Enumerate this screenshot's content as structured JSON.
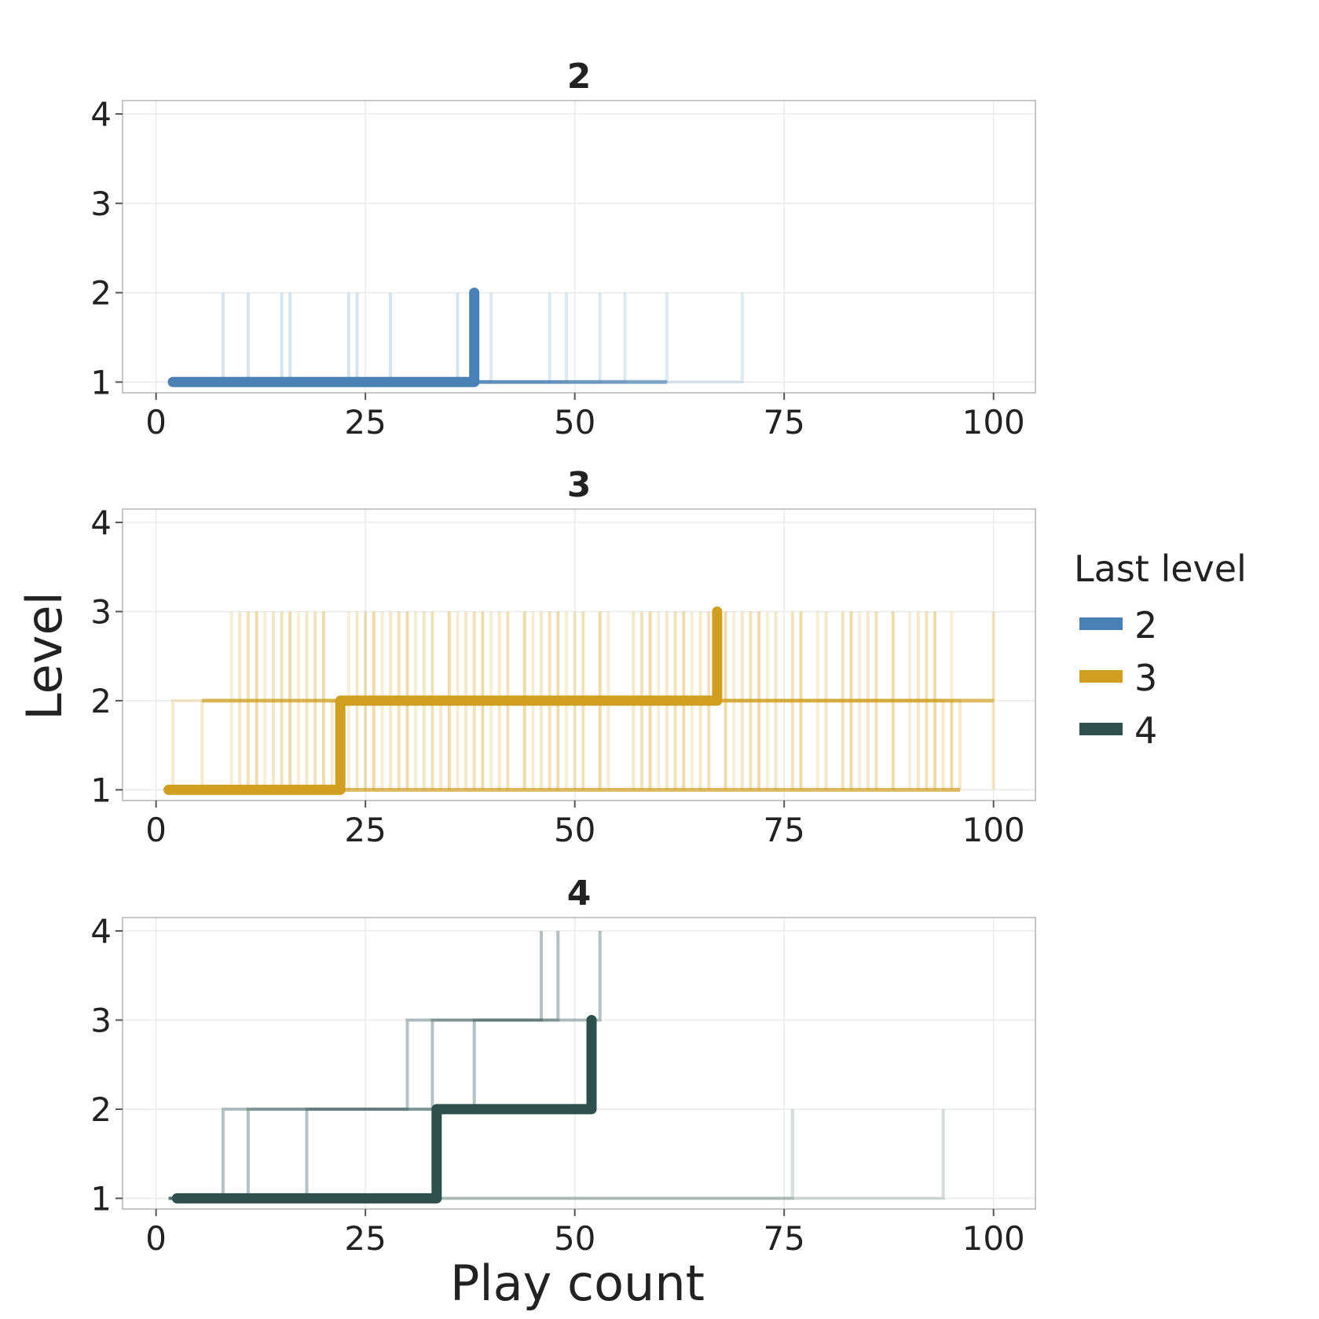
{
  "colors": {
    "2": "#4a80b3",
    "3": "#d09e20",
    "4": "#2f4f4d",
    "grid": "#ebebeb",
    "border": "#b3b3b3",
    "text": "#222222"
  },
  "chart_data": {
    "type": "line",
    "step": true,
    "xlabel": "Play count",
    "ylabel": "Level",
    "xlim": [
      -4,
      105
    ],
    "xticks": [
      0,
      25,
      50,
      75,
      100
    ],
    "legend": {
      "title": "Last level",
      "placement": "right",
      "entries": [
        "2",
        "3",
        "4"
      ]
    },
    "grid": true,
    "panels": [
      {
        "title": "2",
        "key": "2",
        "ylim": [
          0.88,
          4.15
        ],
        "yticks": [
          1,
          2,
          3,
          4
        ],
        "highlight": [
          [
            2,
            1
          ],
          [
            38,
            1
          ],
          [
            38,
            2
          ]
        ],
        "faint_steps": [
          {
            "up": 8,
            "end": 70,
            "top": 2
          },
          {
            "up": 11,
            "end": 61,
            "top": 2
          },
          {
            "up": 15,
            "end": 56,
            "top": 2
          },
          {
            "up": 16,
            "end": 53,
            "top": 2
          },
          {
            "up": 23,
            "end": 49,
            "top": 2
          },
          {
            "up": 24,
            "end": 47,
            "top": 2
          },
          {
            "up": 28,
            "end": 40,
            "top": 2
          },
          {
            "up": 36,
            "end": 38,
            "top": 2
          }
        ]
      },
      {
        "title": "3",
        "key": "3",
        "ylim": [
          0.88,
          4.15
        ],
        "yticks": [
          1,
          2,
          3,
          4
        ],
        "highlight": [
          [
            1.5,
            1
          ],
          [
            22,
            1
          ],
          [
            22,
            2
          ],
          [
            67,
            2
          ],
          [
            67,
            3
          ]
        ],
        "faint_to2": [
          {
            "start": 2,
            "end": 100
          },
          {
            "start": 5.5,
            "end": 94
          },
          {
            "start": 21,
            "end": 96
          },
          {
            "start": 34,
            "end": 95
          }
        ],
        "faint_steps_x": [
          9,
          10,
          11,
          12,
          13,
          14,
          15,
          16,
          17,
          18,
          19,
          20,
          23,
          24,
          25,
          26,
          27,
          28,
          29,
          30,
          31,
          32,
          33,
          35,
          36,
          37,
          38,
          39,
          40,
          41,
          42,
          44,
          45,
          46,
          47,
          48,
          49,
          50,
          51,
          53,
          54,
          57,
          58,
          59,
          60,
          61,
          62,
          63,
          64,
          65,
          66,
          68,
          69,
          70,
          71,
          72,
          73,
          74,
          76,
          77,
          79,
          80,
          82,
          83,
          84,
          85,
          86,
          88,
          90,
          91,
          92,
          93,
          95
        ]
      },
      {
        "title": "4",
        "key": "4",
        "ylim": [
          0.88,
          4.15
        ],
        "yticks": [
          1,
          2,
          3,
          4
        ],
        "highlight": [
          [
            2.5,
            1
          ],
          [
            33.5,
            1
          ],
          [
            33.5,
            2
          ],
          [
            52,
            2
          ],
          [
            52,
            3
          ]
        ],
        "faint_paths": [
          [
            [
              1.5,
              1
            ],
            [
              8,
              1
            ],
            [
              8,
              2
            ],
            [
              30,
              2
            ],
            [
              30,
              3
            ],
            [
              46,
              3
            ],
            [
              46,
              4
            ]
          ],
          [
            [
              1.5,
              1
            ],
            [
              11,
              1
            ],
            [
              11,
              2
            ],
            [
              38,
              2
            ],
            [
              38,
              3
            ],
            [
              48,
              3
            ],
            [
              48,
              4
            ]
          ],
          [
            [
              1.5,
              1
            ],
            [
              18,
              1
            ],
            [
              18,
              2
            ],
            [
              33,
              2
            ],
            [
              33,
              3
            ],
            [
              53,
              3
            ],
            [
              53,
              4
            ]
          ],
          [
            [
              1.5,
              1
            ],
            [
              76,
              1
            ],
            [
              76,
              2
            ]
          ],
          [
            [
              33.5,
              1
            ],
            [
              94,
              1
            ],
            [
              94,
              2
            ]
          ]
        ]
      }
    ]
  }
}
